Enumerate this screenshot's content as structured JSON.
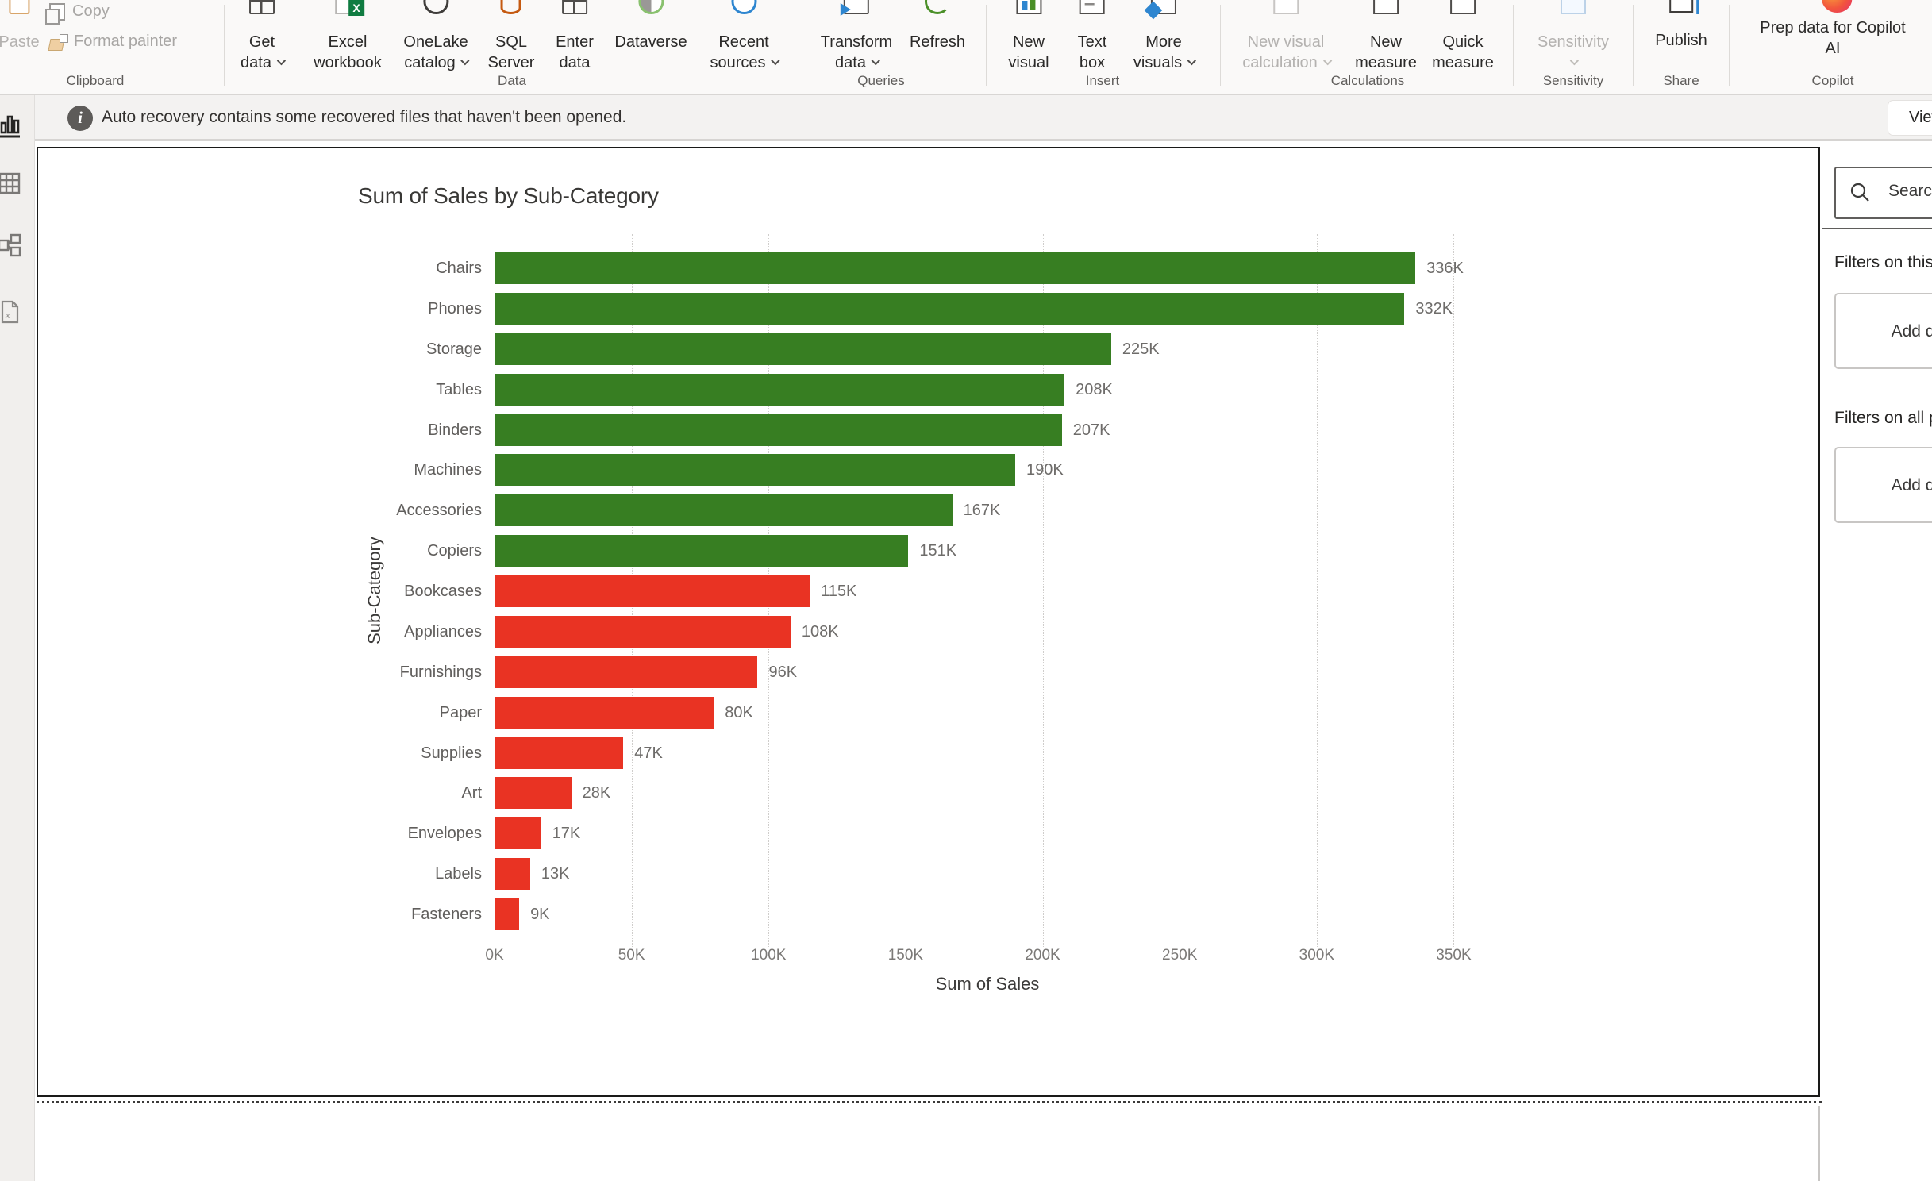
{
  "ribbon": {
    "groups": [
      {
        "label": "Clipboard",
        "items": [
          {
            "l1": "Paste"
          },
          {
            "l1": "Copy"
          },
          {
            "l1": "Format painter"
          }
        ]
      },
      {
        "label": "Data",
        "items": [
          {
            "l1": "Get",
            "l2": "data"
          },
          {
            "l1": "Excel",
            "l2": "workbook"
          },
          {
            "l1": "OneLake",
            "l2": "catalog"
          },
          {
            "l1": "SQL",
            "l2": "Server"
          },
          {
            "l1": "Enter",
            "l2": "data"
          },
          {
            "l1": "Dataverse"
          },
          {
            "l1": "Recent",
            "l2": "sources"
          }
        ]
      },
      {
        "label": "Queries",
        "items": [
          {
            "l1": "Transform",
            "l2": "data"
          },
          {
            "l1": "Refresh"
          }
        ]
      },
      {
        "label": "Insert",
        "items": [
          {
            "l1": "New",
            "l2": "visual"
          },
          {
            "l1": "Text",
            "l2": "box"
          },
          {
            "l1": "More",
            "l2": "visuals"
          }
        ]
      },
      {
        "label": "Calculations",
        "items": [
          {
            "l1": "New visual",
            "l2": "calculation"
          },
          {
            "l1": "New",
            "l2": "measure"
          },
          {
            "l1": "Quick",
            "l2": "measure"
          }
        ]
      },
      {
        "label": "Sensitivity",
        "items": [
          {
            "l1": "Sensitivity"
          }
        ]
      },
      {
        "label": "Share",
        "items": [
          {
            "l1": "Publish"
          }
        ]
      },
      {
        "label": "Copilot",
        "items": [
          {
            "l1": "Prep data for Copilot",
            "l2": "AI"
          }
        ]
      }
    ]
  },
  "banner": {
    "text": "Auto recovery contains some recovered files that haven't been opened.",
    "view_button": "View"
  },
  "filters_pane": {
    "search_placeholder": "Search",
    "section_this_page": "Filters on this page",
    "section_all_pages": "Filters on all pages",
    "add_placeholder": "Add data fields here"
  },
  "chart_data": {
    "type": "bar",
    "orientation": "horizontal",
    "title": "Sum of Sales by Sub-Category",
    "xlabel": "Sum of Sales",
    "ylabel": "Sub-Category",
    "categories": [
      "Chairs",
      "Phones",
      "Storage",
      "Tables",
      "Binders",
      "Machines",
      "Accessories",
      "Copiers",
      "Bookcases",
      "Appliances",
      "Furnishings",
      "Paper",
      "Supplies",
      "Art",
      "Envelopes",
      "Labels",
      "Fasteners"
    ],
    "values": [
      336000,
      332000,
      225000,
      208000,
      207000,
      190000,
      167000,
      151000,
      115000,
      108000,
      96000,
      80000,
      47000,
      28000,
      17000,
      13000,
      9000
    ],
    "value_labels": [
      "336K",
      "332K",
      "225K",
      "208K",
      "207K",
      "190K",
      "167K",
      "151K",
      "115K",
      "108K",
      "96K",
      "80K",
      "47K",
      "28K",
      "17K",
      "13K",
      "9K"
    ],
    "bar_colors": [
      "#377E22",
      "#377E22",
      "#377E22",
      "#377E22",
      "#377E22",
      "#377E22",
      "#377E22",
      "#377E22",
      "#E93323",
      "#E93323",
      "#E93323",
      "#E93323",
      "#E93323",
      "#E93323",
      "#E93323",
      "#E93323",
      "#E93323"
    ],
    "color_legend": {
      "green": "#377E22",
      "red": "#E93323"
    },
    "x_ticks": [
      "0K",
      "50K",
      "100K",
      "150K",
      "200K",
      "250K",
      "300K",
      "350K"
    ],
    "x_tick_values": [
      0,
      50000,
      100000,
      150000,
      200000,
      250000,
      300000,
      350000
    ],
    "xlim": [
      0,
      380000
    ],
    "grid": "vertical-dotted",
    "legend": "none"
  }
}
